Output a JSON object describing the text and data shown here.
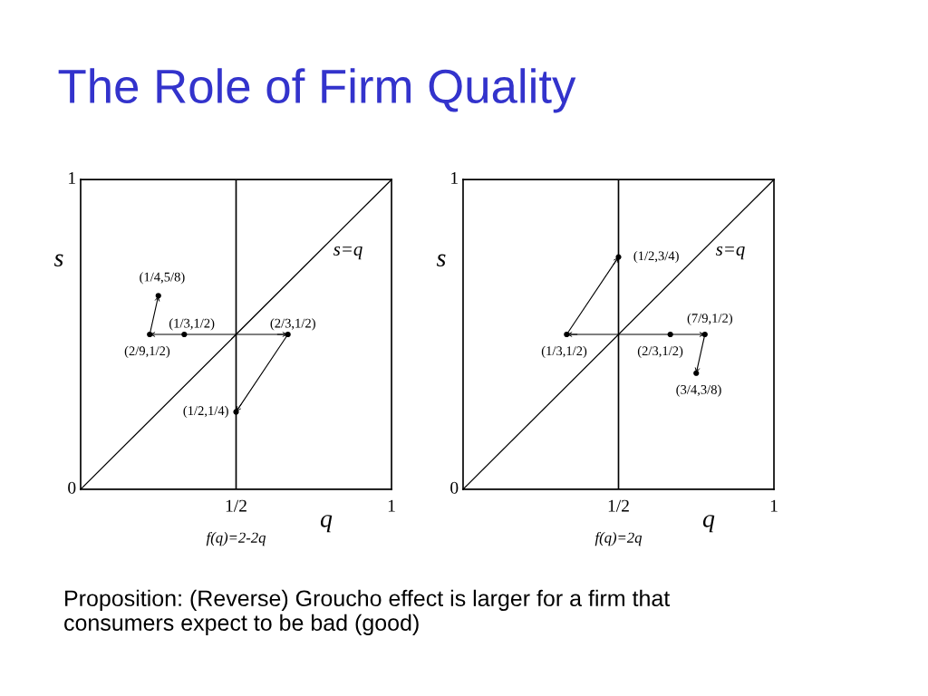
{
  "chart_data": [
    {
      "type": "scatter",
      "title": "The Role of Firm Quality",
      "xlabel": "q",
      "ylabel": "s",
      "xlim": [
        0,
        1
      ],
      "ylim": [
        0,
        1
      ],
      "xticks": [
        {
          "value": 0.5,
          "label": "1/2"
        },
        1
      ],
      "yticks": [
        0,
        1
      ],
      "grid": false,
      "ref_lines": [
        {
          "axis": "x",
          "value": 0.5,
          "color": "#000000"
        }
      ],
      "series": [
        {
          "type": "line",
          "name": "s=q",
          "color": "#000000",
          "x": [
            0,
            1
          ],
          "values": [
            0,
            1
          ]
        },
        {
          "type": "line",
          "color": "#000000",
          "x": [
            0.3333,
            0.2222
          ],
          "values": [
            0.5,
            0.5
          ]
        },
        {
          "type": "line",
          "color": "#000000",
          "x": [
            0.2222,
            0.25
          ],
          "values": [
            0.5,
            0.625
          ]
        },
        {
          "type": "line",
          "color": "#000000",
          "x": [
            0.3333,
            0.6667
          ],
          "values": [
            0.5,
            0.5
          ]
        },
        {
          "type": "line",
          "color": "#000000",
          "x": [
            0.6667,
            0.5
          ],
          "values": [
            0.5,
            0.25
          ]
        },
        {
          "color": "#000000",
          "marker": "circle",
          "x": [
            0.25,
            0.3333,
            0.2222,
            0.6667,
            0.5
          ],
          "values": [
            0.625,
            0.5,
            0.5,
            0.5,
            0.25
          ]
        }
      ],
      "annotations": [
        {
          "text": "(1/4,5/8)",
          "x": 0.25,
          "y": 0.625
        },
        {
          "text": "(1/3,1/2)",
          "x": 0.3333,
          "y": 0.5
        },
        {
          "text": "(2/9,1/2)",
          "x": 0.2222,
          "y": 0.5
        },
        {
          "text": "(2/3,1/2)",
          "x": 0.6667,
          "y": 0.5
        },
        {
          "text": "(1/2,1/4)",
          "x": 0.5,
          "y": 0.25
        },
        "f(q)=2-2q"
      ]
    },
    {
      "type": "scatter",
      "xlabel": "q",
      "ylabel": "s",
      "xlim": [
        0,
        1
      ],
      "ylim": [
        0,
        1
      ],
      "xticks": [
        {
          "value": 0.5,
          "label": "1/2"
        },
        1
      ],
      "yticks": [
        0,
        1
      ],
      "grid": false,
      "ref_lines": [
        {
          "axis": "x",
          "value": 0.5,
          "color": "#000000"
        }
      ],
      "series": [
        {
          "type": "line",
          "name": "s=q",
          "color": "#000000",
          "x": [
            0,
            1
          ],
          "values": [
            0,
            1
          ]
        },
        {
          "type": "line",
          "color": "#000000",
          "x": [
            0.6667,
            0.3333
          ],
          "values": [
            0.5,
            0.5
          ]
        },
        {
          "type": "line",
          "color": "#000000",
          "x": [
            0.3333,
            0.5
          ],
          "values": [
            0.5,
            0.75
          ]
        },
        {
          "type": "line",
          "color": "#000000",
          "x": [
            0.6667,
            0.7778
          ],
          "values": [
            0.5,
            0.5
          ]
        },
        {
          "type": "line",
          "color": "#000000",
          "x": [
            0.7778,
            0.75
          ],
          "values": [
            0.5,
            0.375
          ]
        },
        {
          "color": "#000000",
          "marker": "circle",
          "x": [
            0.5,
            0.3333,
            0.6667,
            0.7778,
            0.75
          ],
          "values": [
            0.75,
            0.5,
            0.5,
            0.5,
            0.375
          ]
        }
      ],
      "annotations": [
        {
          "text": "(1/2,3/4)",
          "x": 0.5,
          "y": 0.75
        },
        {
          "text": "(1/3,1/2)",
          "x": 0.3333,
          "y": 0.5
        },
        {
          "text": "(2/3,1/2)",
          "x": 0.6667,
          "y": 0.5
        },
        {
          "text": "(7/9,1/2)",
          "x": 0.7778,
          "y": 0.5
        },
        {
          "text": "(3/4,3/8)",
          "x": 0.75,
          "y": 0.375
        },
        "f(q)=2q",
        "Proposition: (Reverse) Groucho effect is larger for a firm that consumers expect to be bad (good)"
      ]
    }
  ]
}
